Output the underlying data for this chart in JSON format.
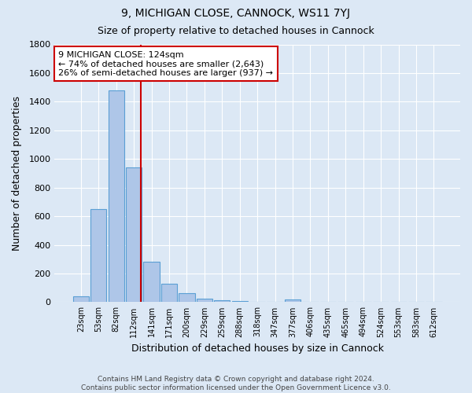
{
  "title1": "9, MICHIGAN CLOSE, CANNOCK, WS11 7YJ",
  "title2": "Size of property relative to detached houses in Cannock",
  "xlabel": "Distribution of detached houses by size in Cannock",
  "ylabel": "Number of detached properties",
  "footer": "Contains HM Land Registry data © Crown copyright and database right 2024.\nContains public sector information licensed under the Open Government Licence v3.0.",
  "bin_labels": [
    "23sqm",
    "53sqm",
    "82sqm",
    "112sqm",
    "141sqm",
    "171sqm",
    "200sqm",
    "229sqm",
    "259sqm",
    "288sqm",
    "318sqm",
    "347sqm",
    "377sqm",
    "406sqm",
    "435sqm",
    "465sqm",
    "494sqm",
    "524sqm",
    "553sqm",
    "583sqm",
    "612sqm"
  ],
  "bar_values": [
    40,
    650,
    1480,
    940,
    285,
    130,
    65,
    22,
    12,
    8,
    5,
    4,
    18,
    0,
    0,
    0,
    0,
    0,
    0,
    0,
    0
  ],
  "bar_color": "#aec6e8",
  "bar_edge_color": "#5a9fd4",
  "background_color": "#dce8f5",
  "grid_color": "#ffffff",
  "vline_color": "#cc0000",
  "annotation_text": "9 MICHIGAN CLOSE: 124sqm\n← 74% of detached houses are smaller (2,643)\n26% of semi-detached houses are larger (937) →",
  "annotation_box_color": "#ffffff",
  "annotation_box_edge": "#cc0000",
  "ylim": [
    0,
    1800
  ],
  "yticks": [
    0,
    200,
    400,
    600,
    800,
    1000,
    1200,
    1400,
    1600,
    1800
  ]
}
